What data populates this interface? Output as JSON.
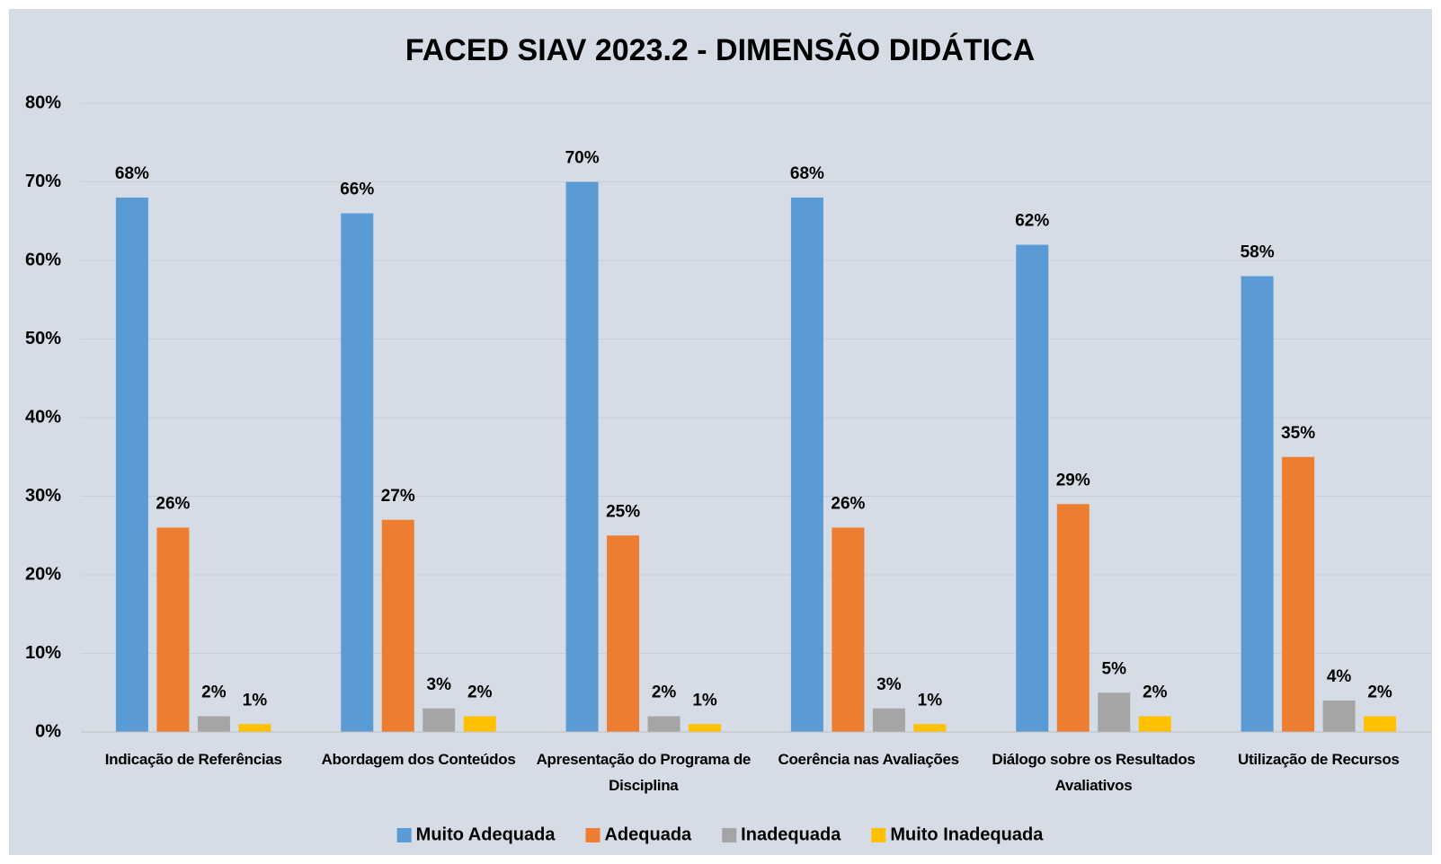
{
  "chart_data": {
    "type": "bar",
    "title": "FACED SIAV 2023.2 - DIMENSÃO DIDÁTICA",
    "categories": [
      "Indicação de Referências",
      "Abordagem dos Conteúdos",
      "Apresentação do Programa de Disciplina",
      "Coerência nas Avaliações",
      "Diálogo sobre os Resultados Avaliativos",
      "Utilização de Recursos"
    ],
    "series": [
      {
        "name": "Muito Adequada",
        "color": "#5b9bd5",
        "values": [
          68,
          66,
          70,
          68,
          62,
          58
        ],
        "value_labels": [
          "68%",
          "66%",
          "70%",
          "68%",
          "62%",
          "58%"
        ]
      },
      {
        "name": "Adequada",
        "color": "#ed7d31",
        "values": [
          26,
          27,
          25,
          26,
          29,
          35
        ],
        "value_labels": [
          "26%",
          "27%",
          "25%",
          "26%",
          "29%",
          "35%"
        ]
      },
      {
        "name": "Inadequada",
        "color": "#a5a5a5",
        "values": [
          2,
          3,
          2,
          3,
          5,
          4
        ],
        "value_labels": [
          "2%",
          "3%",
          "2%",
          "3%",
          "5%",
          "4%"
        ]
      },
      {
        "name": "Muito Inadequada",
        "color": "#ffc000",
        "values": [
          1,
          2,
          1,
          1,
          2,
          2
        ],
        "value_labels": [
          "1%",
          "2%",
          "1%",
          "1%",
          "2%",
          "2%"
        ]
      }
    ],
    "ylim": [
      0,
      80
    ],
    "yticks": [
      {
        "value": 0,
        "label": "0%"
      },
      {
        "value": 10,
        "label": "10%"
      },
      {
        "value": 20,
        "label": "20%"
      },
      {
        "value": 30,
        "label": "30%"
      },
      {
        "value": 40,
        "label": "40%"
      },
      {
        "value": 50,
        "label": "50%"
      },
      {
        "value": 60,
        "label": "60%"
      },
      {
        "value": 70,
        "label": "70%"
      },
      {
        "value": 80,
        "label": "80%"
      }
    ],
    "grid": true,
    "legend": "bottom"
  }
}
